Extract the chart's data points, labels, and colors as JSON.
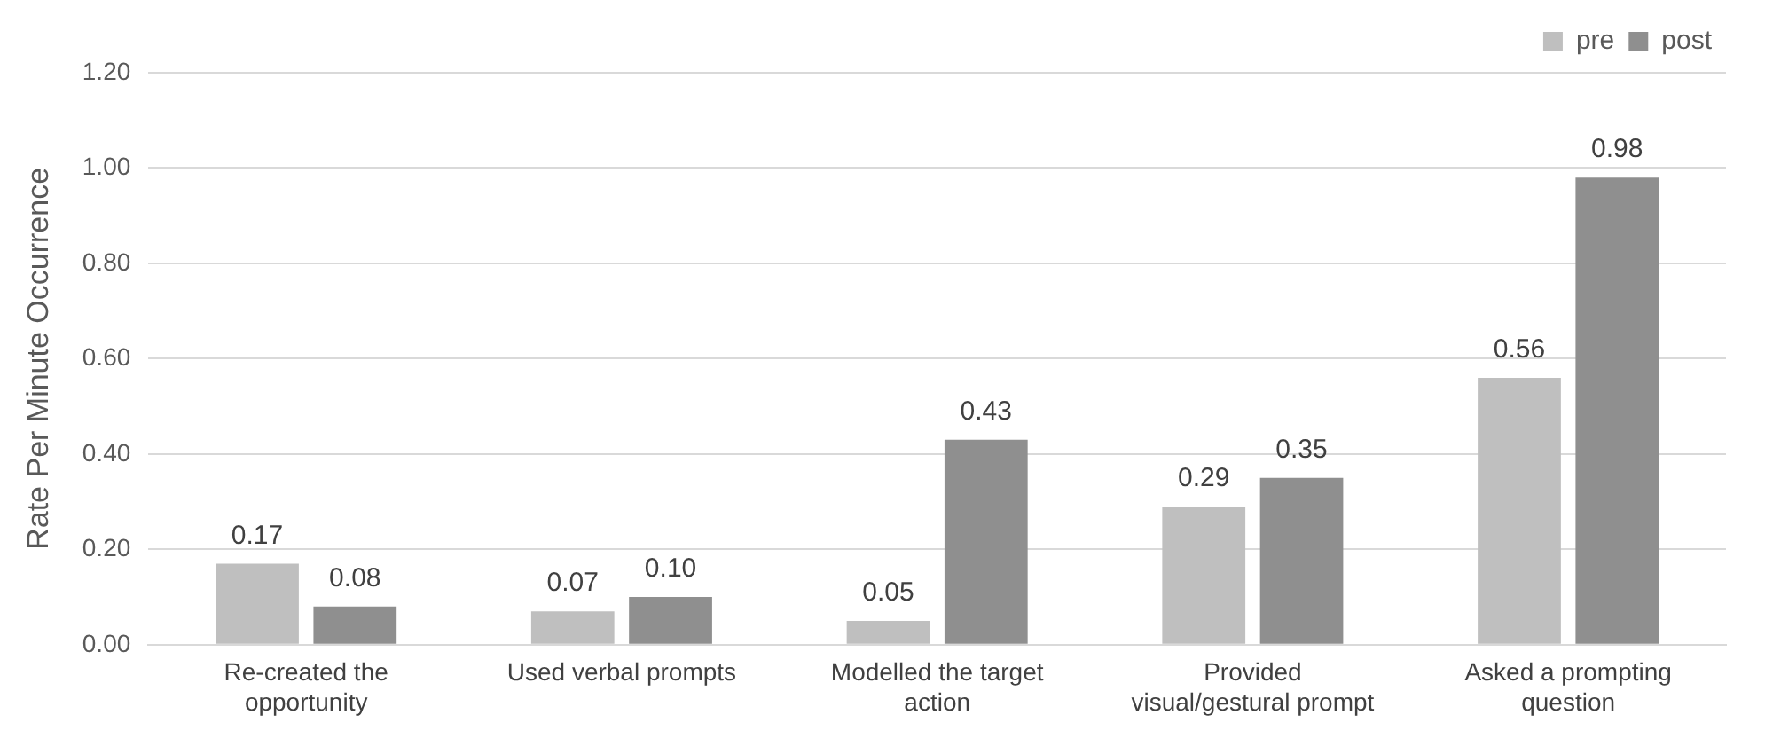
{
  "chart_data": {
    "type": "bar",
    "ylabel": "Rate Per Minute Occurrence",
    "categories": [
      "Re-created the opportunity",
      "Used verbal prompts",
      "Modelled the target action",
      "Provided visual/gestural prompt",
      "Asked a prompting question"
    ],
    "series": [
      {
        "name": "pre",
        "color": "#bfbfbf",
        "values": [
          0.17,
          0.07,
          0.05,
          0.29,
          0.56
        ],
        "value_labels": [
          "0.17",
          "0.07",
          "0.05",
          "0.29",
          "0.56"
        ]
      },
      {
        "name": "post",
        "color": "#8f8f8f",
        "values": [
          0.08,
          0.1,
          0.43,
          0.35,
          0.98
        ],
        "value_labels": [
          "0.08",
          "0.10",
          "0.43",
          "0.35",
          "0.98"
        ]
      }
    ],
    "ylim": [
      0,
      1.2
    ],
    "yticks": [
      {
        "value": 0,
        "label": "0.00"
      },
      {
        "value": 0.2,
        "label": "0.20"
      },
      {
        "value": 0.4,
        "label": "0.40"
      },
      {
        "value": 0.6,
        "label": "0.60"
      },
      {
        "value": 0.8,
        "label": "0.80"
      },
      {
        "value": 1,
        "label": "1.00"
      },
      {
        "value": 1.2,
        "label": "1.20"
      }
    ],
    "grid": "y",
    "legend": "top right"
  }
}
